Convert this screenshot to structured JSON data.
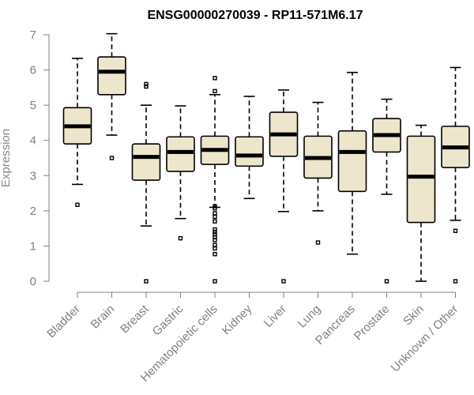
{
  "chart_data": {
    "type": "boxplot",
    "title": "ENSG00000270039 - RP11-571M6.17",
    "xlabel": "",
    "ylabel": "Expression",
    "ylim": [
      0,
      7
    ],
    "yticks": [
      0,
      1,
      2,
      3,
      4,
      5,
      6,
      7
    ],
    "box_fill": "#ede6cc",
    "series": [
      {
        "name": "Bladder",
        "min": 2.75,
        "q1": 3.9,
        "median": 4.4,
        "q3": 4.93,
        "max": 6.33,
        "outliers": [
          2.17
        ]
      },
      {
        "name": "Brain",
        "min": 4.15,
        "q1": 5.3,
        "median": 5.95,
        "q3": 6.37,
        "max": 7.03,
        "outliers": [
          3.5
        ]
      },
      {
        "name": "Breast",
        "min": 1.57,
        "q1": 2.87,
        "median": 3.53,
        "q3": 3.9,
        "max": 5.0,
        "outliers": [
          5.6,
          5.53,
          0.0
        ]
      },
      {
        "name": "Gastric",
        "min": 1.78,
        "q1": 3.12,
        "median": 3.67,
        "q3": 4.1,
        "max": 4.98,
        "outliers": [
          1.22
        ]
      },
      {
        "name": "Hematopoietic cells",
        "min": 2.1,
        "q1": 3.32,
        "median": 3.73,
        "q3": 4.12,
        "max": 5.3,
        "outliers": [
          5.77,
          5.4,
          2.13,
          2.07,
          1.93,
          1.83,
          1.7,
          1.47,
          1.4,
          1.33,
          1.25,
          1.17,
          1.03,
          0.93,
          0.77,
          0.0
        ]
      },
      {
        "name": "Kidney",
        "min": 2.35,
        "q1": 3.27,
        "median": 3.57,
        "q3": 4.1,
        "max": 5.25,
        "outliers": []
      },
      {
        "name": "Liver",
        "min": 1.98,
        "q1": 3.55,
        "median": 4.17,
        "q3": 4.8,
        "max": 5.43,
        "outliers": [
          0.0
        ]
      },
      {
        "name": "Lung",
        "min": 2.0,
        "q1": 2.93,
        "median": 3.5,
        "q3": 4.12,
        "max": 5.08,
        "outliers": [
          1.1
        ]
      },
      {
        "name": "Pancreas",
        "min": 0.77,
        "q1": 2.55,
        "median": 3.67,
        "q3": 4.27,
        "max": 5.93,
        "outliers": []
      },
      {
        "name": "Prostate",
        "min": 2.47,
        "q1": 3.67,
        "median": 4.15,
        "q3": 4.62,
        "max": 5.17,
        "outliers": [
          0.0
        ]
      },
      {
        "name": "Skin",
        "min": 0.0,
        "q1": 1.67,
        "median": 2.97,
        "q3": 4.12,
        "max": 4.43,
        "outliers": []
      },
      {
        "name": "Unknown / Other",
        "min": 1.73,
        "q1": 3.23,
        "median": 3.8,
        "q3": 4.4,
        "max": 6.07,
        "outliers": [
          1.43,
          0.0
        ]
      }
    ]
  }
}
